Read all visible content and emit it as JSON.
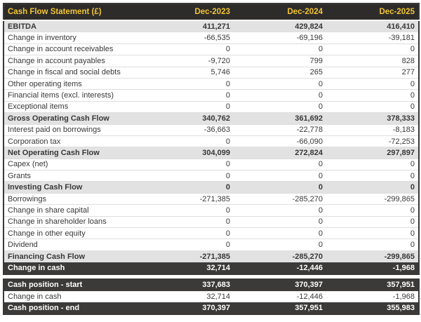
{
  "colors": {
    "header_bg": "#2d2c2b",
    "header_text": "#f2c431",
    "subtotal_row_bg": "#e2e2e2",
    "dark_row_bg": "#3b3a39",
    "dark_row_text": "#ffffff",
    "body_text": "#383838",
    "row_separator": "#dedede",
    "outer_border": "#3a3938"
  },
  "main_table": {
    "header": {
      "label": "Cash Flow Statement (£)",
      "columns": [
        "Dec-2023",
        "Dec-2024",
        "Dec-2025"
      ]
    },
    "rows": [
      {
        "label": "EBITDA",
        "values": [
          "411,271",
          "429,824",
          "416,410"
        ],
        "style": "subtotal"
      },
      {
        "label": "Change in inventory",
        "values": [
          "-66,535",
          "-69,196",
          "-39,181"
        ],
        "style": "normal"
      },
      {
        "label": "Change in account receivables",
        "values": [
          "0",
          "0",
          "0"
        ],
        "style": "normal"
      },
      {
        "label": "Change in account payables",
        "values": [
          "-9,720",
          "799",
          "828"
        ],
        "style": "normal"
      },
      {
        "label": "Change in fiscal and social debts",
        "values": [
          "5,746",
          "265",
          "277"
        ],
        "style": "normal"
      },
      {
        "label": "Other operating items",
        "values": [
          "0",
          "0",
          "0"
        ],
        "style": "normal"
      },
      {
        "label": "Financial items (excl. interests)",
        "values": [
          "0",
          "0",
          "0"
        ],
        "style": "normal"
      },
      {
        "label": "Exceptional items",
        "values": [
          "0",
          "0",
          "0"
        ],
        "style": "normal"
      },
      {
        "label": "Gross Operating Cash Flow",
        "values": [
          "340,762",
          "361,692",
          "378,333"
        ],
        "style": "subtotal"
      },
      {
        "label": "Interest paid on borrowings",
        "values": [
          "-36,663",
          "-22,778",
          "-8,183"
        ],
        "style": "normal"
      },
      {
        "label": "Corporation tax",
        "values": [
          "0",
          "-66,090",
          "-72,253"
        ],
        "style": "normal"
      },
      {
        "label": "Net Operating Cash Flow",
        "values": [
          "304,099",
          "272,824",
          "297,897"
        ],
        "style": "subtotal"
      },
      {
        "label": "Capex (net)",
        "values": [
          "0",
          "0",
          "0"
        ],
        "style": "normal"
      },
      {
        "label": "Grants",
        "values": [
          "0",
          "0",
          "0"
        ],
        "style": "normal"
      },
      {
        "label": "Investing Cash Flow",
        "values": [
          "0",
          "0",
          "0"
        ],
        "style": "subtotal"
      },
      {
        "label": "Borrowings",
        "values": [
          "-271,385",
          "-285,270",
          "-299,865"
        ],
        "style": "normal"
      },
      {
        "label": "Change in share capital",
        "values": [
          "0",
          "0",
          "0"
        ],
        "style": "normal"
      },
      {
        "label": "Change in shareholder loans",
        "values": [
          "0",
          "0",
          "0"
        ],
        "style": "normal"
      },
      {
        "label": "Change in other equity",
        "values": [
          "0",
          "0",
          "0"
        ],
        "style": "normal"
      },
      {
        "label": "Dividend",
        "values": [
          "0",
          "0",
          "0"
        ],
        "style": "normal"
      },
      {
        "label": "Financing Cash Flow",
        "values": [
          "-271,385",
          "-285,270",
          "-299,865"
        ],
        "style": "subtotal"
      },
      {
        "label": "Change in cash",
        "values": [
          "32,714",
          "-12,446",
          "-1,968"
        ],
        "style": "dark"
      }
    ]
  },
  "summary_table": {
    "rows": [
      {
        "label": "Cash position - start",
        "values": [
          "337,683",
          "370,397",
          "357,951"
        ],
        "style": "dark"
      },
      {
        "label": "Change in cash",
        "values": [
          "32,714",
          "-12,446",
          "-1,968"
        ],
        "style": "normal"
      },
      {
        "label": "Cash position - end",
        "values": [
          "370,397",
          "357,951",
          "355,983"
        ],
        "style": "dark"
      }
    ]
  },
  "chart_data": {
    "type": "table",
    "title": "Cash Flow Statement (£)",
    "columns": [
      "Cash Flow Statement (£)",
      "Dec-2023",
      "Dec-2024",
      "Dec-2025"
    ],
    "rows": [
      [
        "EBITDA",
        411271,
        429824,
        416410
      ],
      [
        "Change in inventory",
        -66535,
        -69196,
        -39181
      ],
      [
        "Change in account receivables",
        0,
        0,
        0
      ],
      [
        "Change in account payables",
        -9720,
        799,
        828
      ],
      [
        "Change in fiscal and social debts",
        5746,
        265,
        277
      ],
      [
        "Other operating items",
        0,
        0,
        0
      ],
      [
        "Financial items (excl. interests)",
        0,
        0,
        0
      ],
      [
        "Exceptional items",
        0,
        0,
        0
      ],
      [
        "Gross Operating Cash Flow",
        340762,
        361692,
        378333
      ],
      [
        "Interest paid on borrowings",
        -36663,
        -22778,
        -8183
      ],
      [
        "Corporation tax",
        0,
        -66090,
        -72253
      ],
      [
        "Net Operating Cash Flow",
        304099,
        272824,
        297897
      ],
      [
        "Capex (net)",
        0,
        0,
        0
      ],
      [
        "Grants",
        0,
        0,
        0
      ],
      [
        "Investing Cash Flow",
        0,
        0,
        0
      ],
      [
        "Borrowings",
        -271385,
        -285270,
        -299865
      ],
      [
        "Change in share capital",
        0,
        0,
        0
      ],
      [
        "Change in shareholder loans",
        0,
        0,
        0
      ],
      [
        "Change in other equity",
        0,
        0,
        0
      ],
      [
        "Dividend",
        0,
        0,
        0
      ],
      [
        "Financing Cash Flow",
        -271385,
        -285270,
        -299865
      ],
      [
        "Change in cash",
        32714,
        -12446,
        -1968
      ],
      [
        "Cash position - start",
        337683,
        370397,
        357951
      ],
      [
        "Change in cash",
        32714,
        -12446,
        -1968
      ],
      [
        "Cash position - end",
        370397,
        357951,
        355983
      ]
    ]
  }
}
